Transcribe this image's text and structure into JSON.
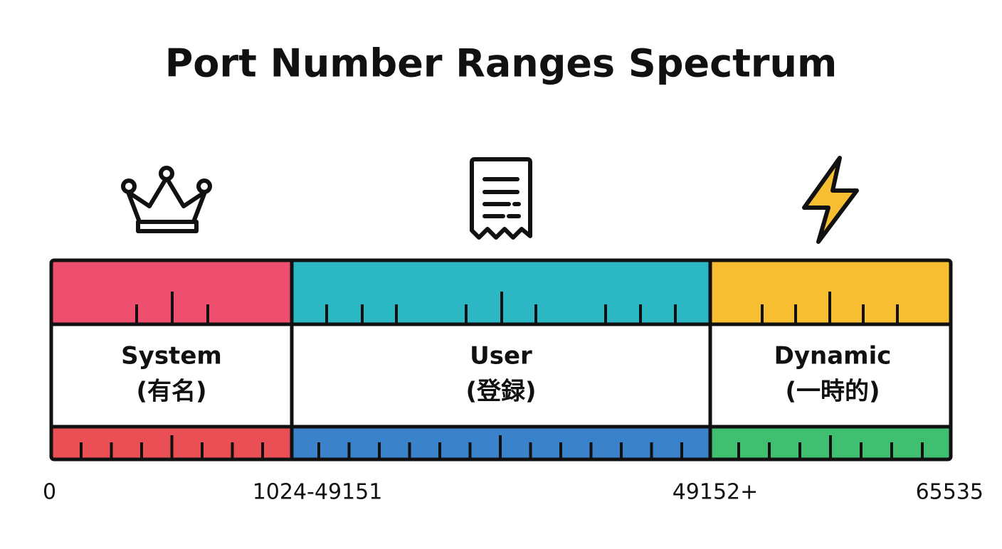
{
  "title": "Port Number Ranges Spectrum",
  "segments": [
    {
      "name": "System",
      "subtitle": "(有名)"
    },
    {
      "name": "User",
      "subtitle": "(登録)"
    },
    {
      "name": "Dynamic",
      "subtitle": "(一時的)"
    }
  ],
  "scale_labels": [
    "0",
    "1024-49151",
    "49152+",
    "65535"
  ]
}
